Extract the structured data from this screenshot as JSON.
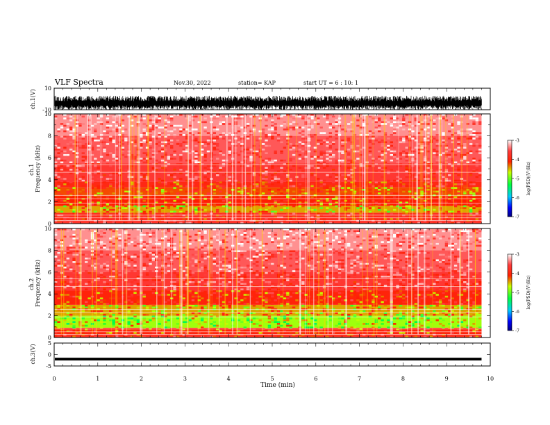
{
  "header": {
    "title": "VLF Spectra",
    "date": "Nov.30, 2022",
    "station": "station= KAP",
    "start": "start  UT =  6 : 10: 1"
  },
  "chart_data": [
    {
      "type": "line",
      "panel": "ch1-waveform",
      "ylabel": "ch.1(V)",
      "ylim": [
        -10,
        10
      ],
      "yticks": [
        {
          "v": 10,
          "label": "10"
        },
        {
          "v": -10,
          "label": "-10"
        }
      ],
      "xlim": [
        0,
        10
      ],
      "data_end_min": 9.8,
      "trace": "dense black noise, roughly between -10 and 3 V"
    },
    {
      "type": "heatmap",
      "panel": "ch1-spectrogram",
      "ylabel": "ch.1\nFrequency (kHz)",
      "ylim": [
        0,
        10
      ],
      "yticks": [
        {
          "v": 0,
          "label": "0"
        },
        {
          "v": 2,
          "label": "2"
        },
        {
          "v": 4,
          "label": "4"
        },
        {
          "v": 6,
          "label": "6"
        },
        {
          "v": 8,
          "label": "8"
        },
        {
          "v": 10,
          "label": "10"
        }
      ],
      "xlim": [
        0,
        10
      ],
      "data_end_min": 9.8,
      "bands": [
        {
          "from": 0.0,
          "to": 0.3,
          "level": -3.9
        },
        {
          "from": 0.3,
          "to": 1.0,
          "level": -4.0
        },
        {
          "from": 1.0,
          "to": 1.6,
          "level": -4.6
        },
        {
          "from": 1.6,
          "to": 2.5,
          "level": -4.3
        },
        {
          "from": 2.5,
          "to": 3.3,
          "level": -4.4
        },
        {
          "from": 3.3,
          "to": 3.8,
          "level": -4.1
        },
        {
          "from": 3.8,
          "to": 5.5,
          "level": -3.8
        },
        {
          "from": 5.5,
          "to": 8.0,
          "level": -3.6
        },
        {
          "from": 8.0,
          "to": 10.0,
          "level": -3.4
        }
      ],
      "colorbar": {
        "label": "log(PSD)(V²/Hz)",
        "range": [
          -7,
          -3
        ],
        "ticks": [
          {
            "v": -3,
            "label": "-3"
          },
          {
            "v": -4,
            "label": "-4"
          },
          {
            "v": -5,
            "label": "-5"
          },
          {
            "v": -6,
            "label": "-6"
          },
          {
            "v": -7,
            "label": "-7"
          }
        ]
      }
    },
    {
      "type": "heatmap",
      "panel": "ch2-spectrogram",
      "ylabel": "ch.2\nFrequency (kHz)",
      "ylim": [
        0,
        10
      ],
      "yticks": [
        {
          "v": 0,
          "label": "0"
        },
        {
          "v": 2,
          "label": "2"
        },
        {
          "v": 4,
          "label": "4"
        },
        {
          "v": 6,
          "label": "6"
        },
        {
          "v": 8,
          "label": "8"
        },
        {
          "v": 10,
          "label": "10"
        }
      ],
      "xlim": [
        0,
        10
      ],
      "data_end_min": 9.8,
      "bands": [
        {
          "from": 0.0,
          "to": 0.3,
          "level": -4.0
        },
        {
          "from": 0.3,
          "to": 0.9,
          "level": -4.2
        },
        {
          "from": 0.9,
          "to": 2.0,
          "level": -4.9
        },
        {
          "from": 2.0,
          "to": 3.0,
          "level": -4.6
        },
        {
          "from": 3.0,
          "to": 4.3,
          "level": -4.2
        },
        {
          "from": 4.3,
          "to": 6.0,
          "level": -3.8
        },
        {
          "from": 6.0,
          "to": 8.0,
          "level": -3.6
        },
        {
          "from": 8.0,
          "to": 10.0,
          "level": -3.4
        }
      ],
      "colorbar": {
        "label": "log(PSD)(V²/Hz)",
        "range": [
          -7,
          -3
        ],
        "ticks": [
          {
            "v": -3,
            "label": "-3"
          },
          {
            "v": -4,
            "label": "-4"
          },
          {
            "v": -5,
            "label": "-5"
          },
          {
            "v": -6,
            "label": "-6"
          },
          {
            "v": -7,
            "label": "-7"
          }
        ]
      }
    },
    {
      "type": "line",
      "panel": "ch3-waveform",
      "ylabel": "ch.3(V)",
      "ylim": [
        -5,
        5
      ],
      "yticks": [
        {
          "v": 5,
          "label": "5"
        },
        {
          "v": 0,
          "label": "0"
        },
        {
          "v": -5,
          "label": "-5"
        }
      ],
      "xlim": [
        0,
        10
      ],
      "data_end_min": 9.8,
      "trace": "thick flat band near -2 V"
    }
  ],
  "xaxis": {
    "label": "Time (min)",
    "ticks": [
      "0",
      "1",
      "2",
      "3",
      "4",
      "5",
      "6",
      "7",
      "8",
      "9",
      "10"
    ]
  }
}
